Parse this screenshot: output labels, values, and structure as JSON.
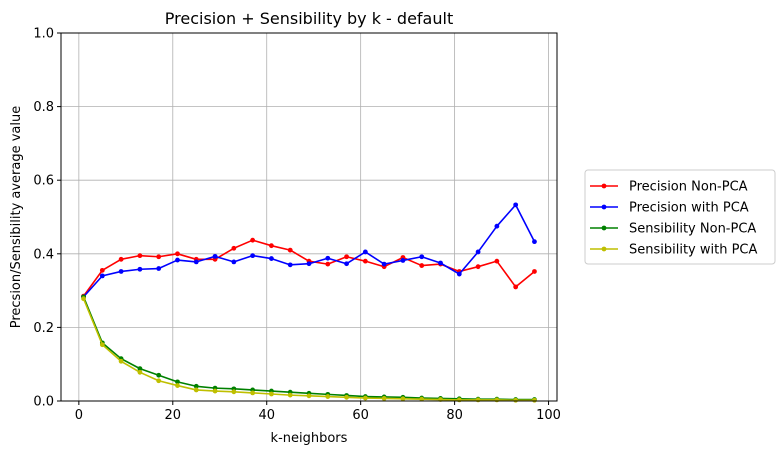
{
  "chart_data": {
    "type": "line",
    "title": "Precision + Sensibility by k - default",
    "xlabel": "k-neighbors",
    "ylabel": "Precsion/Sensibility average value",
    "xlim": [
      -3.8,
      101.8
    ],
    "ylim": [
      0,
      1.0
    ],
    "xticks": [
      0,
      20,
      40,
      60,
      80,
      100
    ],
    "yticks": [
      0.0,
      0.2,
      0.4,
      0.6,
      0.8,
      1.0
    ],
    "xtick_labels": [
      "0",
      "20",
      "40",
      "60",
      "80",
      "100"
    ],
    "ytick_labels": [
      "0.0",
      "0.2",
      "0.4",
      "0.6",
      "0.8",
      "1.0"
    ],
    "grid": true,
    "legend_position": "outside-right",
    "x": [
      1,
      5,
      9,
      13,
      17,
      21,
      25,
      29,
      33,
      37,
      41,
      45,
      49,
      53,
      57,
      61,
      65,
      69,
      73,
      77,
      81,
      85,
      89,
      93,
      97
    ],
    "series": [
      {
        "name": "Precision Non-PCA",
        "color": "#ff0000",
        "values": [
          0.285,
          0.355,
          0.385,
          0.395,
          0.392,
          0.4,
          0.385,
          0.385,
          0.415,
          0.437,
          0.422,
          0.41,
          0.38,
          0.372,
          0.392,
          0.38,
          0.365,
          0.39,
          0.368,
          0.372,
          0.352,
          0.365,
          0.38,
          0.31,
          0.352
        ]
      },
      {
        "name": "Precision with PCA",
        "color": "#0000ff",
        "values": [
          0.283,
          0.34,
          0.352,
          0.358,
          0.36,
          0.383,
          0.378,
          0.393,
          0.378,
          0.395,
          0.387,
          0.37,
          0.373,
          0.388,
          0.373,
          0.405,
          0.372,
          0.382,
          0.392,
          0.375,
          0.345,
          0.405,
          0.475,
          0.533,
          0.433
        ]
      },
      {
        "name": "Sensibility Non-PCA",
        "color": "#008000",
        "values": [
          0.283,
          0.158,
          0.115,
          0.088,
          0.07,
          0.052,
          0.04,
          0.035,
          0.033,
          0.03,
          0.027,
          0.024,
          0.021,
          0.018,
          0.015,
          0.012,
          0.011,
          0.01,
          0.008,
          0.007,
          0.006,
          0.005,
          0.005,
          0.004,
          0.004
        ]
      },
      {
        "name": "Sensibility with PCA",
        "color": "#bfbf00",
        "values": [
          0.278,
          0.153,
          0.108,
          0.078,
          0.055,
          0.042,
          0.03,
          0.027,
          0.025,
          0.022,
          0.019,
          0.016,
          0.014,
          0.012,
          0.01,
          0.008,
          0.007,
          0.006,
          0.005,
          0.004,
          0.003,
          0.003,
          0.003,
          0.002,
          0.002
        ]
      }
    ]
  }
}
